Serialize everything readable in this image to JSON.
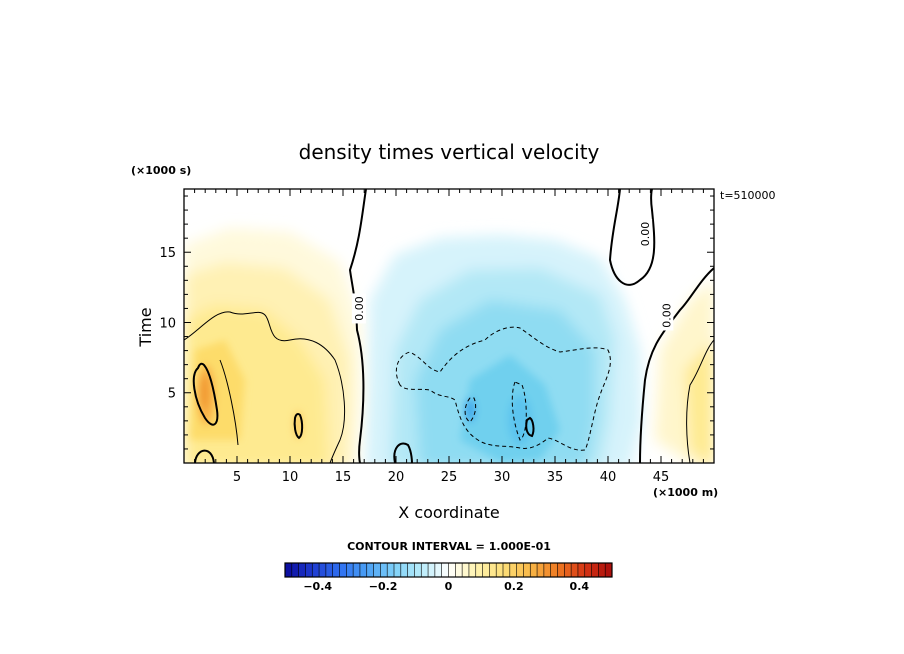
{
  "chart_data": {
    "type": "heatmap",
    "title": "density times vertical velocity",
    "xlabel": "X coordinate",
    "ylabel": "Time",
    "x_unit": "(×1000 m)",
    "y_unit": "(×1000 s)",
    "time_stamp": "t=510000",
    "xlim": [
      0,
      50
    ],
    "ylim": [
      0,
      19.5
    ],
    "x_ticks": [
      5,
      10,
      15,
      20,
      25,
      30,
      35,
      40,
      45
    ],
    "x_tick_labels": [
      "5",
      "10",
      "15",
      "20",
      "25",
      "30",
      "35",
      "40",
      "45"
    ],
    "y_ticks": [
      5,
      10,
      15
    ],
    "y_tick_labels": [
      "5",
      "10",
      "15"
    ],
    "contour_interval_text": "CONTOUR INTERVAL = 1.000E-01",
    "contour_labels": [
      {
        "text": "0.00",
        "x": 16.5,
        "y": 11.0
      },
      {
        "text": "0.00",
        "x": 43.5,
        "y": 16.3
      },
      {
        "text": "0.00",
        "x": 45.5,
        "y": 10.5
      }
    ],
    "colorbar": {
      "range": [
        -0.5,
        0.5
      ],
      "ticks": [
        -0.4,
        -0.2,
        0,
        0.2,
        0.4
      ],
      "tick_labels": [
        "−0.4",
        "−0.2",
        "0",
        "0.2",
        "0.4"
      ],
      "colors": [
        "#0a0a9a",
        "#1e3ad0",
        "#2e6ff0",
        "#4aa0f5",
        "#7ed0f8",
        "#b8ecfa",
        "#ffffff",
        "#fff3b0",
        "#fde07a",
        "#f8b848",
        "#ef7a22",
        "#d63414",
        "#a80c0c"
      ]
    },
    "fields": [
      {
        "sign": "positive",
        "x_range": [
          0,
          16
        ],
        "y_range": [
          0,
          17.5
        ],
        "peak": 0.22
      },
      {
        "sign": "negative",
        "x_range": [
          17,
          41
        ],
        "y_range": [
          0,
          16
        ],
        "peak": -0.2
      },
      {
        "sign": "positive",
        "x_range": [
          46,
          50
        ],
        "y_range": [
          0,
          12
        ],
        "peak": 0.12
      }
    ]
  }
}
